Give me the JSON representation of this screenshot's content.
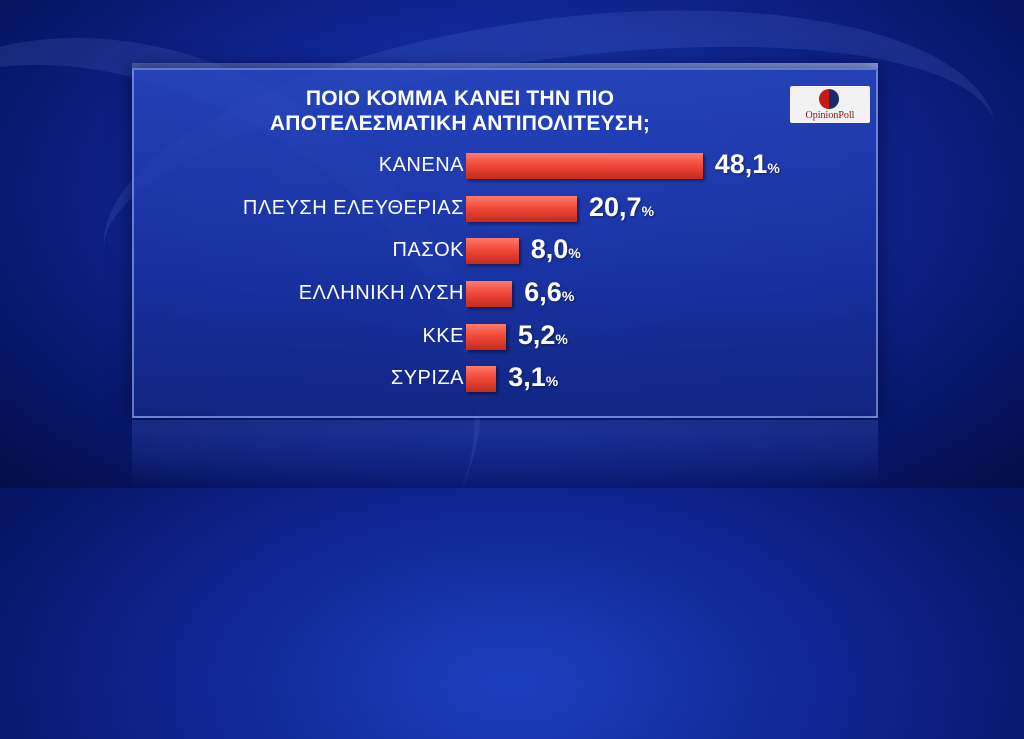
{
  "chart_data": {
    "type": "bar",
    "orientation": "horizontal",
    "title": "ΠΟΙΟ ΚΟΜΜΑ ΚΑΝΕΙ ΤΗΝ ΠΙΟ ΑΠΟΤΕΛΕΣΜΑΤΙΚΗ ΑΝΤΙΠΟΛΙΤΕΥΣΗ;",
    "title_lines": [
      "ΠΟΙΟ ΚΟΜΜΑ ΚΑΝΕΙ ΤΗΝ ΠΙΟ",
      "ΑΠΟΤΕΛΕΣΜΑΤΙΚΗ ΑΝΤΙΠΟΛΙΤΕΥΣΗ;"
    ],
    "categories": [
      "ΚΑΝΕΝΑ",
      "ΠΛΕΥΣΗ  ΕΛΕΥΘΕΡΙΑΣ",
      "ΠΑΣΟΚ",
      "ΕΛΛΗΝΙΚΗ ΛΥΣΗ",
      "ΚΚΕ",
      "ΣΥΡΙΖΑ"
    ],
    "values": [
      48.1,
      20.7,
      8.0,
      6.6,
      5.2,
      3.1
    ],
    "value_labels": [
      "48,1",
      "20,7",
      "8,0",
      "6,6",
      "5,2",
      "3,1"
    ],
    "unit": "%",
    "bar_color": "#f04a3a",
    "grid": false,
    "legend": "none"
  },
  "logo": {
    "text": "OpinionPoll"
  },
  "colors": {
    "background": "#0f2590",
    "text": "#ffffff"
  }
}
